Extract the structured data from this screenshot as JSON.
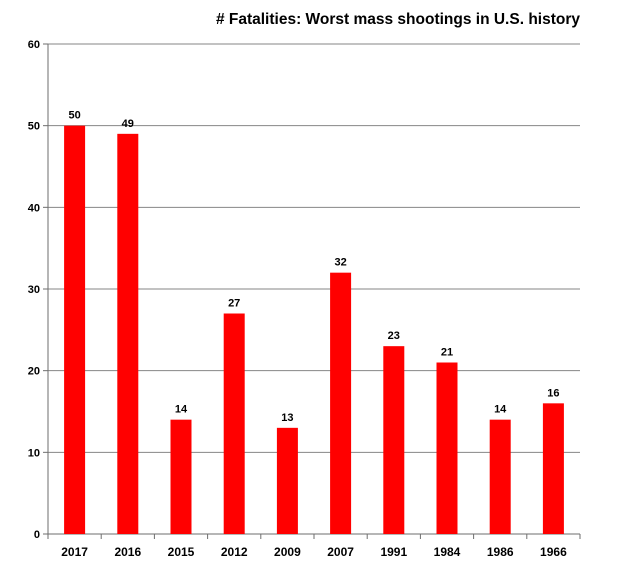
{
  "chart_data": {
    "type": "bar",
    "title": "# Fatalities:  Worst mass shootings  in U.S. history",
    "xlabel": "",
    "ylabel": "",
    "categories": [
      "2017",
      "2016",
      "2015",
      "2012",
      "2009",
      "2007",
      "1991",
      "1984",
      "1986",
      "1966"
    ],
    "values": [
      50,
      49,
      14,
      27,
      13,
      32,
      23,
      21,
      14,
      16
    ],
    "ylim": [
      0,
      60
    ],
    "yticks": [
      0,
      10,
      20,
      30,
      40,
      50,
      60
    ],
    "grid": true,
    "legend": "none",
    "bar_color": "#ff0000",
    "grid_color": "#868686"
  }
}
